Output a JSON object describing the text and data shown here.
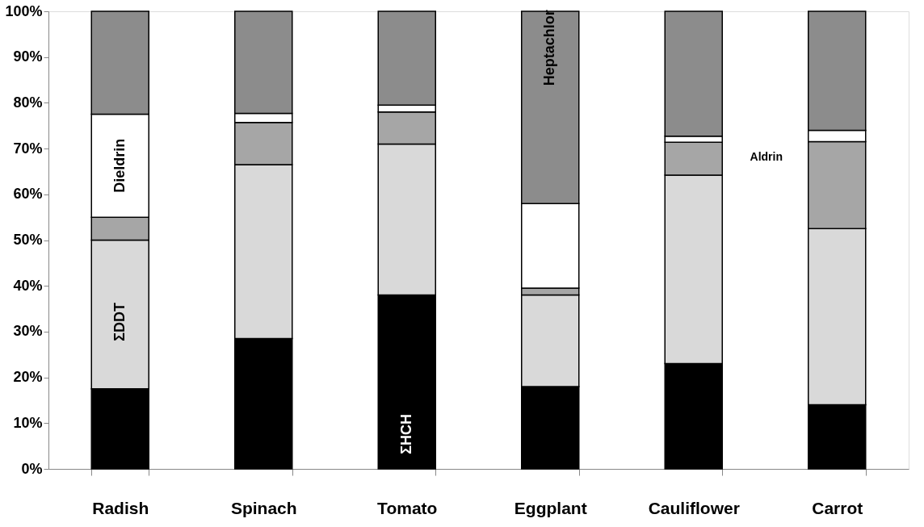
{
  "chart_data": {
    "type": "bar",
    "stacked": true,
    "categories": [
      "Radish",
      "Spinach",
      "Tomato",
      "Eggplant",
      "Cauliflower",
      "Carrot"
    ],
    "series": [
      {
        "name": "ΣHCH",
        "color": "#000000",
        "values": [
          17.5,
          28.5,
          38,
          18,
          23,
          14
        ]
      },
      {
        "name": "ΣDDT",
        "color": "#d9d9d9",
        "values": [
          32.5,
          38,
          33,
          20,
          41.2,
          38.5
        ]
      },
      {
        "name": "Aldrin",
        "color": "#a6a6a6",
        "values": [
          5,
          9.2,
          7,
          1.5,
          7.2,
          19
        ]
      },
      {
        "name": "Dieldrin",
        "color": "#ffffff",
        "values": [
          22.5,
          2,
          1.5,
          18.5,
          1.3,
          2.5
        ]
      },
      {
        "name": "Heptachlor",
        "color": "#8c8c8c",
        "values": [
          22.5,
          22.3,
          20.5,
          42,
          27.3,
          26
        ]
      }
    ],
    "ylim": [
      0,
      100
    ],
    "yticks": [
      {
        "value": 0,
        "label": "0%"
      },
      {
        "value": 10,
        "label": "10%"
      },
      {
        "value": 20,
        "label": "20%"
      },
      {
        "value": 30,
        "label": "30%"
      },
      {
        "value": 40,
        "label": "40%"
      },
      {
        "value": 50,
        "label": "50%"
      },
      {
        "value": 60,
        "label": "60%"
      },
      {
        "value": 70,
        "label": "70%"
      },
      {
        "value": 80,
        "label": "80%"
      },
      {
        "value": 90,
        "label": "90%"
      },
      {
        "value": 100,
        "label": "100%"
      }
    ],
    "grid": false
  }
}
